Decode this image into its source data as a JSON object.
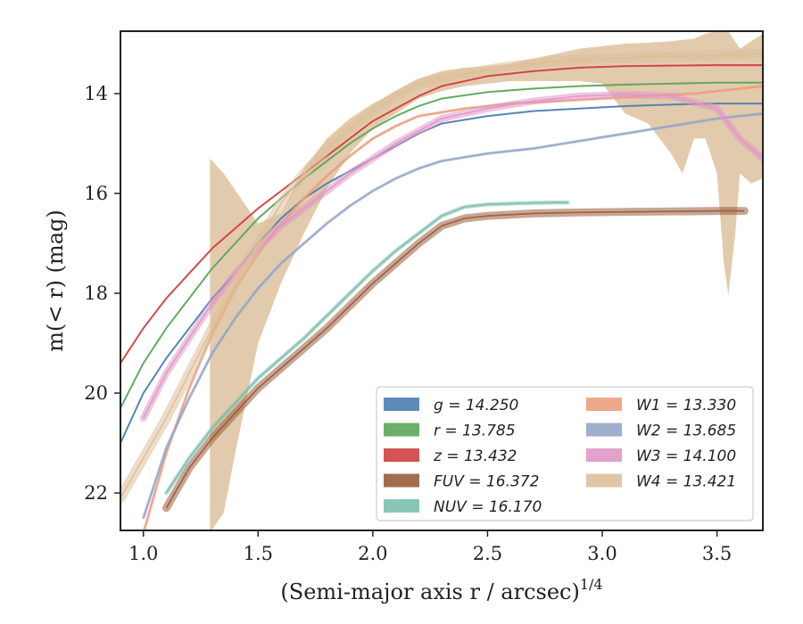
{
  "chart_data": {
    "type": "line",
    "xlabel": "(Semi-major axis r / arcsec)",
    "xlabel_sup": "1/4",
    "ylabel": "m(< r) (mag)",
    "xlim": [
      0.9,
      3.7
    ],
    "ylim": [
      22.75,
      12.75
    ],
    "y_inverted": true,
    "xticks": [
      "1.0",
      "1.5",
      "2.0",
      "2.5",
      "3.0",
      "3.5"
    ],
    "xtick_values": [
      1.0,
      1.5,
      2.0,
      2.5,
      3.0,
      3.5
    ],
    "yticks": [
      "14",
      "16",
      "18",
      "20",
      "22"
    ],
    "ytick_values": [
      14,
      16,
      18,
      20,
      22
    ],
    "grid": false,
    "legend_position": "lower-right",
    "legend_columns": 2,
    "series": [
      {
        "name": "g",
        "legend": "g = 14.250",
        "color": "#4c7fb0",
        "band_width": 0.05,
        "points": [
          [
            0.9,
            21.0
          ],
          [
            1.0,
            20.0
          ],
          [
            1.1,
            19.3
          ],
          [
            1.2,
            18.7
          ],
          [
            1.3,
            18.1
          ],
          [
            1.4,
            17.6
          ],
          [
            1.5,
            17.0
          ],
          [
            1.6,
            16.5
          ],
          [
            1.7,
            16.1
          ],
          [
            1.8,
            15.8
          ],
          [
            1.9,
            15.55
          ],
          [
            2.0,
            15.3
          ],
          [
            2.1,
            15.05
          ],
          [
            2.2,
            14.8
          ],
          [
            2.3,
            14.6
          ],
          [
            2.5,
            14.45
          ],
          [
            2.7,
            14.35
          ],
          [
            2.9,
            14.3
          ],
          [
            3.1,
            14.25
          ],
          [
            3.3,
            14.22
          ],
          [
            3.5,
            14.2
          ],
          [
            3.7,
            14.2
          ]
        ]
      },
      {
        "name": "r",
        "legend": "r = 13.785",
        "color": "#5aa55a",
        "band_width": 0.05,
        "points": [
          [
            0.9,
            20.3
          ],
          [
            1.0,
            19.4
          ],
          [
            1.1,
            18.7
          ],
          [
            1.2,
            18.1
          ],
          [
            1.3,
            17.5
          ],
          [
            1.4,
            17.0
          ],
          [
            1.5,
            16.5
          ],
          [
            1.6,
            16.1
          ],
          [
            1.7,
            15.7
          ],
          [
            1.8,
            15.35
          ],
          [
            1.9,
            15.0
          ],
          [
            2.0,
            14.7
          ],
          [
            2.1,
            14.45
          ],
          [
            2.2,
            14.25
          ],
          [
            2.3,
            14.1
          ],
          [
            2.5,
            13.97
          ],
          [
            2.7,
            13.9
          ],
          [
            2.9,
            13.85
          ],
          [
            3.1,
            13.82
          ],
          [
            3.3,
            13.8
          ],
          [
            3.5,
            13.78
          ],
          [
            3.7,
            13.78
          ]
        ]
      },
      {
        "name": "z",
        "legend": "z = 13.432",
        "color": "#d24040",
        "band_width": 0.05,
        "points": [
          [
            0.9,
            19.4
          ],
          [
            1.0,
            18.7
          ],
          [
            1.1,
            18.1
          ],
          [
            1.2,
            17.6
          ],
          [
            1.3,
            17.1
          ],
          [
            1.4,
            16.7
          ],
          [
            1.5,
            16.3
          ],
          [
            1.6,
            15.95
          ],
          [
            1.7,
            15.6
          ],
          [
            1.8,
            15.25
          ],
          [
            1.9,
            14.9
          ],
          [
            2.0,
            14.55
          ],
          [
            2.1,
            14.3
          ],
          [
            2.2,
            14.05
          ],
          [
            2.3,
            13.85
          ],
          [
            2.5,
            13.65
          ],
          [
            2.7,
            13.55
          ],
          [
            2.9,
            13.48
          ],
          [
            3.1,
            13.45
          ],
          [
            3.3,
            13.44
          ],
          [
            3.5,
            13.43
          ],
          [
            3.7,
            13.43
          ]
        ]
      },
      {
        "name": "FUV",
        "legend": "FUV = 16.372",
        "color": "#9a5c3c",
        "band_width": 0.16,
        "points": [
          [
            1.1,
            22.3
          ],
          [
            1.2,
            21.5
          ],
          [
            1.3,
            20.9
          ],
          [
            1.4,
            20.4
          ],
          [
            1.5,
            19.9
          ],
          [
            1.6,
            19.5
          ],
          [
            1.7,
            19.1
          ],
          [
            1.8,
            18.7
          ],
          [
            1.9,
            18.25
          ],
          [
            2.0,
            17.8
          ],
          [
            2.1,
            17.4
          ],
          [
            2.2,
            17.0
          ],
          [
            2.3,
            16.65
          ],
          [
            2.4,
            16.5
          ],
          [
            2.5,
            16.45
          ],
          [
            2.7,
            16.4
          ],
          [
            2.9,
            16.38
          ],
          [
            3.1,
            16.37
          ],
          [
            3.3,
            16.36
          ],
          [
            3.5,
            16.35
          ],
          [
            3.62,
            16.35
          ]
        ]
      },
      {
        "name": "NUV",
        "legend": "NUV = 16.170",
        "color": "#7dc0ad",
        "band_width": 0.08,
        "points": [
          [
            1.1,
            22.0
          ],
          [
            1.2,
            21.3
          ],
          [
            1.3,
            20.7
          ],
          [
            1.4,
            20.2
          ],
          [
            1.5,
            19.7
          ],
          [
            1.6,
            19.3
          ],
          [
            1.7,
            18.9
          ],
          [
            1.8,
            18.45
          ],
          [
            1.9,
            18.0
          ],
          [
            2.0,
            17.55
          ],
          [
            2.1,
            17.15
          ],
          [
            2.2,
            16.8
          ],
          [
            2.3,
            16.45
          ],
          [
            2.4,
            16.27
          ],
          [
            2.5,
            16.22
          ],
          [
            2.7,
            16.19
          ],
          [
            2.85,
            16.18
          ]
        ]
      },
      {
        "name": "W1",
        "legend": "W1 = 13.330",
        "color": "#eb9f80",
        "band_width": 0.06,
        "points": [
          [
            1.0,
            22.8
          ],
          [
            1.1,
            21.2
          ],
          [
            1.2,
            19.9
          ],
          [
            1.3,
            18.8
          ],
          [
            1.4,
            17.9
          ],
          [
            1.5,
            17.2
          ],
          [
            1.6,
            16.6
          ],
          [
            1.7,
            16.1
          ],
          [
            1.8,
            15.65
          ],
          [
            1.9,
            15.25
          ],
          [
            2.0,
            14.9
          ],
          [
            2.1,
            14.65
          ],
          [
            2.2,
            14.45
          ],
          [
            2.4,
            14.3
          ],
          [
            2.6,
            14.2
          ],
          [
            2.8,
            14.15
          ],
          [
            3.0,
            14.1
          ],
          [
            3.2,
            14.05
          ],
          [
            3.4,
            14.0
          ],
          [
            3.6,
            13.9
          ],
          [
            3.7,
            13.85
          ]
        ]
      },
      {
        "name": "W2",
        "legend": "W2 = 13.685",
        "color": "#95a5c8",
        "band_width": 0.06,
        "points": [
          [
            1.0,
            22.5
          ],
          [
            1.1,
            21.1
          ],
          [
            1.2,
            20.1
          ],
          [
            1.3,
            19.2
          ],
          [
            1.4,
            18.5
          ],
          [
            1.5,
            17.9
          ],
          [
            1.6,
            17.4
          ],
          [
            1.7,
            17.0
          ],
          [
            1.8,
            16.6
          ],
          [
            1.9,
            16.25
          ],
          [
            2.0,
            15.95
          ],
          [
            2.1,
            15.7
          ],
          [
            2.2,
            15.5
          ],
          [
            2.3,
            15.35
          ],
          [
            2.5,
            15.2
          ],
          [
            2.7,
            15.1
          ],
          [
            2.9,
            14.95
          ],
          [
            3.1,
            14.8
          ],
          [
            3.3,
            14.65
          ],
          [
            3.5,
            14.5
          ],
          [
            3.7,
            14.4
          ]
        ]
      },
      {
        "name": "W3",
        "legend": "W3 = 14.100",
        "color": "#e098c6",
        "band_width": 0.14,
        "points": [
          [
            1.0,
            20.5
          ],
          [
            1.1,
            19.6
          ],
          [
            1.2,
            18.9
          ],
          [
            1.3,
            18.2
          ],
          [
            1.4,
            17.6
          ],
          [
            1.5,
            17.1
          ],
          [
            1.6,
            16.65
          ],
          [
            1.7,
            16.3
          ],
          [
            1.8,
            15.95
          ],
          [
            1.9,
            15.6
          ],
          [
            2.0,
            15.3
          ],
          [
            2.1,
            15.0
          ],
          [
            2.2,
            14.75
          ],
          [
            2.3,
            14.5
          ],
          [
            2.5,
            14.3
          ],
          [
            2.7,
            14.15
          ],
          [
            2.9,
            14.05
          ],
          [
            3.1,
            14.02
          ],
          [
            3.3,
            14.05
          ],
          [
            3.5,
            14.3
          ],
          [
            3.6,
            14.9
          ],
          [
            3.7,
            15.3
          ]
        ]
      },
      {
        "name": "W4",
        "legend": "W4 = 13.421",
        "color": "#dcc09a",
        "band_width": 0.2,
        "points": [
          [
            0.9,
            22.1
          ],
          [
            1.0,
            21.3
          ],
          [
            1.1,
            20.5
          ],
          [
            1.2,
            19.6
          ],
          [
            1.3,
            18.7
          ],
          [
            1.4,
            17.8
          ],
          [
            1.5,
            17.0
          ],
          [
            1.6,
            16.2
          ],
          [
            1.7,
            15.6
          ],
          [
            1.8,
            15.1
          ],
          [
            1.9,
            14.7
          ],
          [
            2.0,
            14.35
          ],
          [
            2.1,
            14.05
          ],
          [
            2.2,
            13.8
          ],
          [
            2.4,
            13.6
          ],
          [
            2.6,
            13.45
          ],
          [
            2.8,
            13.35
          ],
          [
            3.0,
            13.3
          ],
          [
            3.2,
            13.27
          ],
          [
            3.4,
            13.25
          ],
          [
            3.6,
            13.22
          ],
          [
            3.7,
            13.2
          ]
        ]
      }
    ],
    "w4_band": {
      "upper": [
        [
          1.29,
          15.3
        ],
        [
          1.35,
          15.6
        ],
        [
          1.5,
          16.6
        ],
        [
          1.6,
          16.4
        ],
        [
          1.7,
          15.5
        ],
        [
          1.8,
          14.9
        ],
        [
          1.9,
          14.5
        ],
        [
          2.0,
          14.2
        ],
        [
          2.1,
          13.95
        ],
        [
          2.2,
          13.7
        ],
        [
          2.3,
          13.55
        ],
        [
          2.4,
          13.48
        ],
        [
          2.5,
          13.45
        ],
        [
          2.6,
          13.4
        ],
        [
          2.7,
          13.3
        ],
        [
          2.8,
          13.2
        ],
        [
          2.9,
          13.1
        ],
        [
          3.0,
          13.05
        ],
        [
          3.1,
          13.0
        ],
        [
          3.2,
          12.98
        ],
        [
          3.3,
          12.95
        ],
        [
          3.4,
          12.9
        ],
        [
          3.45,
          12.8
        ],
        [
          3.5,
          12.75
        ],
        [
          3.55,
          12.75
        ],
        [
          3.6,
          13.1
        ],
        [
          3.65,
          12.95
        ],
        [
          3.7,
          12.8
        ]
      ],
      "lower": [
        [
          1.29,
          22.8
        ],
        [
          1.35,
          22.4
        ],
        [
          1.4,
          21.2
        ],
        [
          1.5,
          19.0
        ],
        [
          1.6,
          17.8
        ],
        [
          1.7,
          16.8
        ],
        [
          1.8,
          15.9
        ],
        [
          1.9,
          15.2
        ],
        [
          2.0,
          14.7
        ],
        [
          2.1,
          14.4
        ],
        [
          2.2,
          14.1
        ],
        [
          2.3,
          13.95
        ],
        [
          2.4,
          13.85
        ],
        [
          2.5,
          13.8
        ],
        [
          2.6,
          13.75
        ],
        [
          2.7,
          13.75
        ],
        [
          2.8,
          13.75
        ],
        [
          2.9,
          13.75
        ],
        [
          3.0,
          13.8
        ],
        [
          3.05,
          14.1
        ],
        [
          3.1,
          14.4
        ],
        [
          3.15,
          14.5
        ],
        [
          3.2,
          14.6
        ],
        [
          3.25,
          14.9
        ],
        [
          3.3,
          15.2
        ],
        [
          3.35,
          15.6
        ],
        [
          3.4,
          14.9
        ],
        [
          3.45,
          14.9
        ],
        [
          3.5,
          15.6
        ],
        [
          3.53,
          17.4
        ],
        [
          3.55,
          18.05
        ],
        [
          3.58,
          16.8
        ],
        [
          3.6,
          15.6
        ],
        [
          3.65,
          15.8
        ],
        [
          3.7,
          15.7
        ]
      ]
    }
  }
}
